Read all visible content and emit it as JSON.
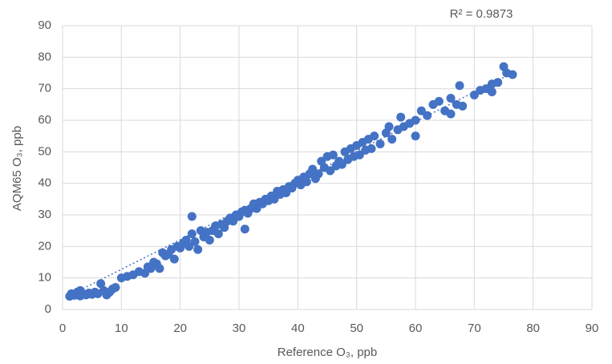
{
  "chart_data": {
    "type": "scatter",
    "annotation": "R² = 0.9873",
    "x_label": "Reference O₃, ppb",
    "y_label": "AQM65 O₃, ppb",
    "color": "#4472c4",
    "grid": true,
    "xlim": [
      0,
      90
    ],
    "xticks": [
      0,
      10,
      20,
      30,
      40,
      50,
      60,
      70,
      80,
      90
    ],
    "ylim": [
      0,
      90
    ],
    "yticks": [
      0,
      10,
      20,
      30,
      40,
      50,
      60,
      70,
      80,
      90
    ],
    "x": [
      1.2,
      1.5,
      2,
      2.5,
      3,
      3,
      3.5,
      4,
      4.5,
      5,
      5.5,
      6,
      6.5,
      7,
      7.5,
      8,
      8.5,
      9,
      10,
      11,
      12,
      13,
      14,
      14.5,
      15,
      15.5,
      16,
      16.5,
      17,
      17.5,
      18,
      18.5,
      19,
      19.5,
      20,
      20.5,
      21,
      21.5,
      22,
      22,
      22.5,
      23,
      23.5,
      24,
      24.5,
      25,
      25.5,
      26,
      26.5,
      27,
      27.5,
      28,
      28.5,
      29,
      29.5,
      30,
      30.5,
      31,
      31,
      31.5,
      32,
      32.5,
      33,
      33.5,
      34,
      34.5,
      35,
      35.5,
      36,
      36.5,
      37,
      37.5,
      38,
      38.5,
      39,
      39.5,
      40,
      40.5,
      41,
      41.5,
      42,
      42.5,
      43,
      43.5,
      44,
      44.5,
      45,
      45.5,
      46,
      46.5,
      47,
      47.5,
      48,
      48.5,
      49,
      49.5,
      50,
      50.5,
      51,
      51.5,
      52,
      52.5,
      53,
      54,
      55,
      55.5,
      56,
      57,
      57.5,
      58,
      59,
      60,
      60,
      61,
      62,
      63,
      64,
      65,
      66,
      66,
      67,
      67.5,
      68,
      70,
      71,
      72,
      73,
      73,
      74,
      75,
      75.5,
      76.5
    ],
    "y": [
      4.2,
      5,
      4.5,
      5.5,
      6,
      4.3,
      5,
      4.6,
      5.2,
      4.8,
      5.5,
      5,
      8.2,
      6,
      4.6,
      5.5,
      6.5,
      7,
      10,
      10.5,
      11,
      12,
      11.5,
      13.5,
      13,
      15,
      14.5,
      13,
      18,
      17,
      17.5,
      19,
      16,
      20,
      19.5,
      21,
      22,
      20,
      29.5,
      24,
      21.5,
      19,
      25,
      23,
      24.5,
      22,
      25,
      26.5,
      24,
      27,
      26,
      28,
      29,
      28,
      30,
      29.5,
      31,
      25.5,
      31.5,
      30.5,
      32,
      33.5,
      32,
      34,
      33.5,
      35,
      34.5,
      36,
      35,
      37.5,
      36.5,
      38,
      37,
      39,
      38.5,
      40,
      41,
      39.5,
      42,
      40.5,
      43,
      44.5,
      41.5,
      43,
      47,
      45,
      48.5,
      44,
      49,
      45.5,
      47,
      46,
      50,
      47.5,
      51,
      48.5,
      52,
      49,
      53,
      50.5,
      54,
      51,
      55,
      52.5,
      56,
      58,
      54,
      57,
      61,
      58,
      59,
      60,
      55,
      63,
      61.5,
      65,
      66,
      63,
      67,
      62,
      65,
      71,
      64.5,
      68,
      69.5,
      70,
      71.5,
      69,
      72,
      77,
      75,
      74.5
    ],
    "trendline": {
      "x": [
        1,
        77
      ],
      "y": [
        4.3,
        75.5
      ]
    }
  }
}
